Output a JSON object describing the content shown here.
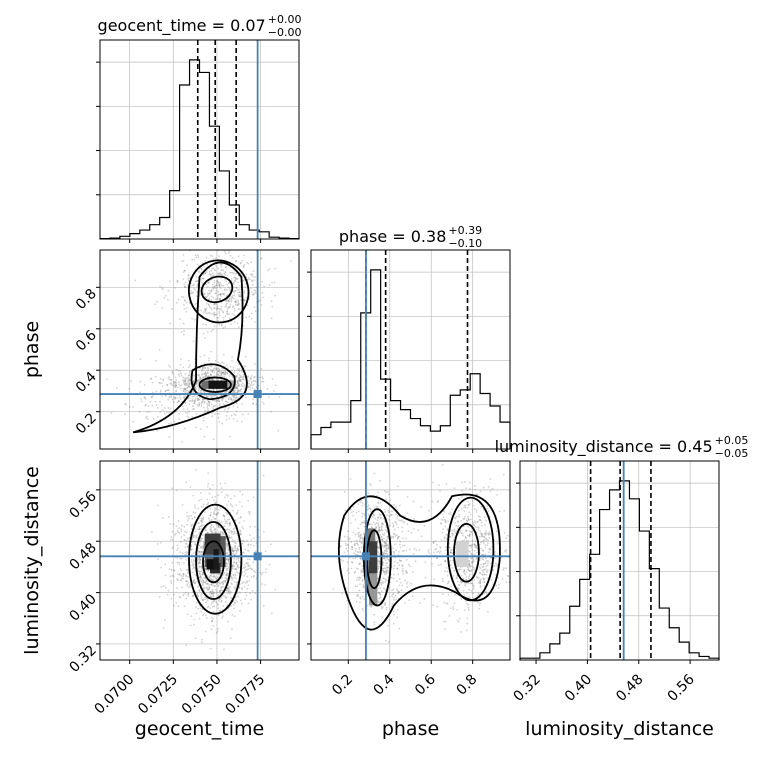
{
  "colors": {
    "truth": "#4682b4",
    "hist": "#000000",
    "grid": "#bdbdbd",
    "scatter": "#808080"
  },
  "chart_data": {
    "type": "corner",
    "parameters": [
      "geocent_time",
      "phase",
      "luminosity_distance"
    ],
    "titles": [
      {
        "parameter": "geocent_time",
        "prefix": "geocent_time = ",
        "median": "0.07",
        "plus": "+0.00",
        "minus": "−0.00"
      },
      {
        "parameter": "phase",
        "prefix": "phase = ",
        "median": "0.38",
        "plus": "+0.39",
        "minus": "−0.10"
      },
      {
        "parameter": "luminosity_distance",
        "prefix": "luminosity_distance = ",
        "median": "0.45",
        "plus": "+0.05",
        "minus": "−0.05"
      }
    ],
    "axis_labels": {
      "x": [
        "geocent_time",
        "phase",
        "luminosity_distance"
      ],
      "y": [
        "phase",
        "luminosity_distance"
      ]
    },
    "ranges": {
      "geocent_time": [
        0.0683,
        0.0797
      ],
      "phase": [
        0.02,
        0.98
      ],
      "luminosity_distance": [
        0.295,
        0.605
      ]
    },
    "ticks": {
      "geocent_time": [
        "0.0700",
        "0.0725",
        "0.0750",
        "0.0775"
      ],
      "phase_x": [
        "0.2",
        "0.4",
        "0.6",
        "0.8"
      ],
      "phase_y": [
        "0.2",
        "0.4",
        "0.6",
        "0.8"
      ],
      "luminosity_distance": [
        "0.32",
        "0.40",
        "0.48",
        "0.56"
      ]
    },
    "truth": {
      "geocent_time": 0.07733,
      "phase": 0.285,
      "luminosity_distance": 0.4565
    },
    "quantiles": {
      "geocent_time": [
        0.0739,
        0.0749,
        0.0761
      ],
      "phase": [
        0.285,
        0.38,
        0.775
      ],
      "luminosity_distance": [
        0.405,
        0.451,
        0.499
      ]
    },
    "hist_1d": {
      "geocent_time": {
        "edges_start": 0.0683,
        "bin_width": 0.00057,
        "counts": [
          0.2,
          0.5,
          1.5,
          3,
          5,
          8,
          12,
          27,
          86,
          100,
          93,
          63,
          38,
          19,
          8,
          5,
          4,
          1,
          0.5,
          0.2
        ]
      },
      "phase": {
        "edges_start": 0.02,
        "bin_width": 0.048,
        "counts": [
          8,
          12,
          15,
          15,
          27,
          76,
          100,
          39,
          27,
          22,
          17,
          13,
          10,
          13,
          30,
          33,
          42,
          31,
          24,
          15
        ]
      },
      "luminosity_distance": {
        "edges_start": 0.295,
        "bin_width": 0.0155,
        "counts": [
          1,
          1,
          4,
          9,
          15,
          30,
          45,
          59,
          84,
          95,
          100,
          90,
          72,
          51,
          29,
          18,
          10,
          4,
          2,
          1
        ]
      }
    },
    "hist_2d_panels": [
      {
        "x": "geocent_time",
        "y": "phase"
      },
      {
        "x": "geocent_time",
        "y": "luminosity_distance"
      },
      {
        "x": "phase",
        "y": "luminosity_distance"
      }
    ],
    "grid": true
  }
}
